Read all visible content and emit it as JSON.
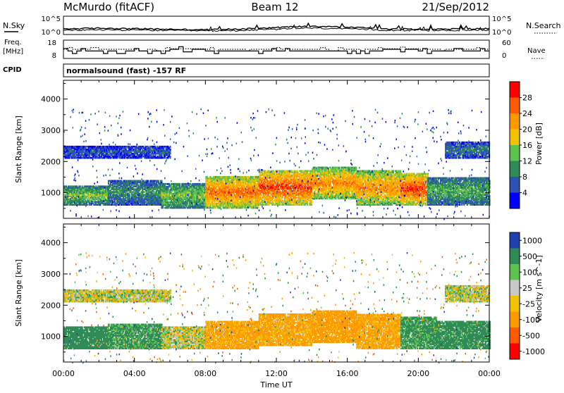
{
  "header": {
    "station": "McMurdo (fitACF)",
    "beam": "Beam 12",
    "date": "21/Sep/2012"
  },
  "noise_panel": {
    "left_label": "N.Sky",
    "right_label": "N.Search",
    "tick_top": "10^5",
    "tick_bottom": "10^0",
    "right_tick_top": "10^5",
    "right_tick_bottom": "10^0"
  },
  "freq_panel": {
    "left_label_line1": "Freq.",
    "left_label_line2": "[MHz]",
    "right_label": "Nave",
    "left_ticks": [
      "18",
      "8"
    ],
    "right_ticks": [
      "60",
      "0"
    ]
  },
  "cpid": {
    "label": "CPID",
    "text": "normalsound (fast) -157 RF"
  },
  "x_axis": {
    "label": "Time UT",
    "ticks": [
      "00:00",
      "04:00",
      "08:00",
      "12:00",
      "16:00",
      "20:00",
      "00:00"
    ]
  },
  "y_axis": {
    "label": "Slant Range [km]",
    "ticks": [
      "1000",
      "2000",
      "3000",
      "4000"
    ]
  },
  "power_colorbar": {
    "label": "Power [dB]",
    "ticks": [
      "4",
      "8",
      "12",
      "16",
      "20",
      "24",
      "28"
    ],
    "colors": [
      "#0000ff",
      "#2c52b8",
      "#2e8b57",
      "#5ec24f",
      "#f2c200",
      "#ff9900",
      "#ff5a00",
      "#ff0000"
    ]
  },
  "velocity_colorbar": {
    "label": "Velocity [m s^-1]",
    "ticks": [
      "1000",
      "500",
      "100",
      "25",
      "-25",
      "-100",
      "-500",
      "-1000"
    ],
    "colors": [
      "#1f3fb0",
      "#2e8b57",
      "#5ec24f",
      "#c8c8c8",
      "#f2c200",
      "#ff9900",
      "#ff5a00",
      "#ff0000"
    ]
  },
  "chart_data": [
    {
      "type": "line",
      "title": "",
      "xlabel": "",
      "ylabel": "N.Sky",
      "x_range_hours": [
        0,
        24
      ],
      "yscale": "log",
      "ylim": [
        1,
        100000
      ],
      "series": [
        {
          "name": "N.Sky",
          "x": [
            0,
            2,
            4,
            6,
            8,
            10,
            12,
            14,
            16,
            18,
            20,
            22,
            24
          ],
          "y": [
            50,
            80,
            60,
            40,
            30,
            50,
            120,
            300,
            150,
            60,
            40,
            50,
            60
          ]
        },
        {
          "name": "N.Search",
          "x": [
            0,
            2,
            4,
            6,
            8,
            10,
            12,
            14,
            16,
            18,
            20,
            22,
            24
          ],
          "y": [
            20,
            30,
            25,
            20,
            15,
            20,
            40,
            90,
            50,
            25,
            20,
            20,
            25
          ]
        }
      ]
    },
    {
      "type": "line",
      "title": "",
      "xlabel": "",
      "ylabel": "Freq. [MHz]",
      "x_range_hours": [
        0,
        24
      ],
      "ylim": [
        8,
        18
      ],
      "series": [
        {
          "name": "Freq.",
          "x": [
            0,
            2,
            4,
            6,
            8,
            10,
            12,
            14,
            16,
            18,
            20,
            22,
            24
          ],
          "y": [
            12,
            12,
            12,
            13,
            12,
            12,
            12,
            12,
            12,
            13,
            12,
            12,
            12
          ]
        },
        {
          "name": "Nave",
          "x": [
            0,
            2,
            4,
            6,
            8,
            10,
            12,
            14,
            16,
            18,
            20,
            22,
            24
          ],
          "y": [
            30,
            30,
            30,
            32,
            30,
            30,
            30,
            30,
            30,
            32,
            30,
            30,
            30
          ]
        }
      ]
    },
    {
      "type": "heatmap",
      "title": "",
      "xlabel": "Time UT",
      "ylabel": "Slant Range [km]",
      "quantity": "Power [dB]",
      "x_range_hours": [
        0,
        24
      ],
      "ylim": [
        180,
        4600
      ],
      "clim": [
        0,
        30
      ],
      "bands": [
        {
          "t": [
            0,
            2.5
          ],
          "range": [
            600,
            1200
          ],
          "value": 14
        },
        {
          "t": [
            2.5,
            5.5
          ],
          "range": [
            600,
            1400
          ],
          "value": 10
        },
        {
          "t": [
            5.5,
            8
          ],
          "range": [
            500,
            1300
          ],
          "value": 14
        },
        {
          "t": [
            8,
            11
          ],
          "range": [
            500,
            1500
          ],
          "value": 24
        },
        {
          "t": [
            11,
            14
          ],
          "range": [
            600,
            1700
          ],
          "value": 26
        },
        {
          "t": [
            14,
            16.5
          ],
          "range": [
            800,
            1800
          ],
          "value": 22
        },
        {
          "t": [
            16.5,
            19
          ],
          "range": [
            600,
            1700
          ],
          "value": 22
        },
        {
          "t": [
            19,
            20.5
          ],
          "range": [
            600,
            1600
          ],
          "value": 26
        },
        {
          "t": [
            20.5,
            24
          ],
          "range": [
            600,
            1500
          ],
          "value": 12
        },
        {
          "t": [
            0,
            4
          ],
          "range": [
            2100,
            2500
          ],
          "value": 6
        },
        {
          "t": [
            4,
            6
          ],
          "range": [
            2100,
            2500
          ],
          "value": 6
        },
        {
          "t": [
            21.5,
            24
          ],
          "range": [
            2100,
            2600
          ],
          "value": 8
        }
      ]
    },
    {
      "type": "heatmap",
      "title": "",
      "xlabel": "Time UT",
      "ylabel": "Slant Range [km]",
      "quantity": "Velocity [m s^-1]",
      "x_range_hours": [
        0,
        24
      ],
      "ylim": [
        180,
        4600
      ],
      "clim": [
        -1000,
        1000
      ],
      "bands": [
        {
          "t": [
            0,
            2.5
          ],
          "range": [
            600,
            1300
          ],
          "value": 300
        },
        {
          "t": [
            2.5,
            5.5
          ],
          "range": [
            600,
            1400
          ],
          "value": 150
        },
        {
          "t": [
            5.5,
            8
          ],
          "range": [
            600,
            1300
          ],
          "value": 0
        },
        {
          "t": [
            8,
            11
          ],
          "range": [
            600,
            1500
          ],
          "value": -150
        },
        {
          "t": [
            11,
            14
          ],
          "range": [
            700,
            1700
          ],
          "value": -150
        },
        {
          "t": [
            14,
            16.5
          ],
          "range": [
            800,
            1800
          ],
          "value": -200
        },
        {
          "t": [
            16.5,
            19
          ],
          "range": [
            600,
            1700
          ],
          "value": -150
        },
        {
          "t": [
            19,
            21
          ],
          "range": [
            600,
            1600
          ],
          "value": 150
        },
        {
          "t": [
            21,
            24
          ],
          "range": [
            600,
            1500
          ],
          "value": 200
        },
        {
          "t": [
            0,
            6
          ],
          "range": [
            2100,
            2500
          ],
          "value": 0
        },
        {
          "t": [
            21.5,
            24
          ],
          "range": [
            2100,
            2600
          ],
          "value": 0
        }
      ]
    }
  ]
}
